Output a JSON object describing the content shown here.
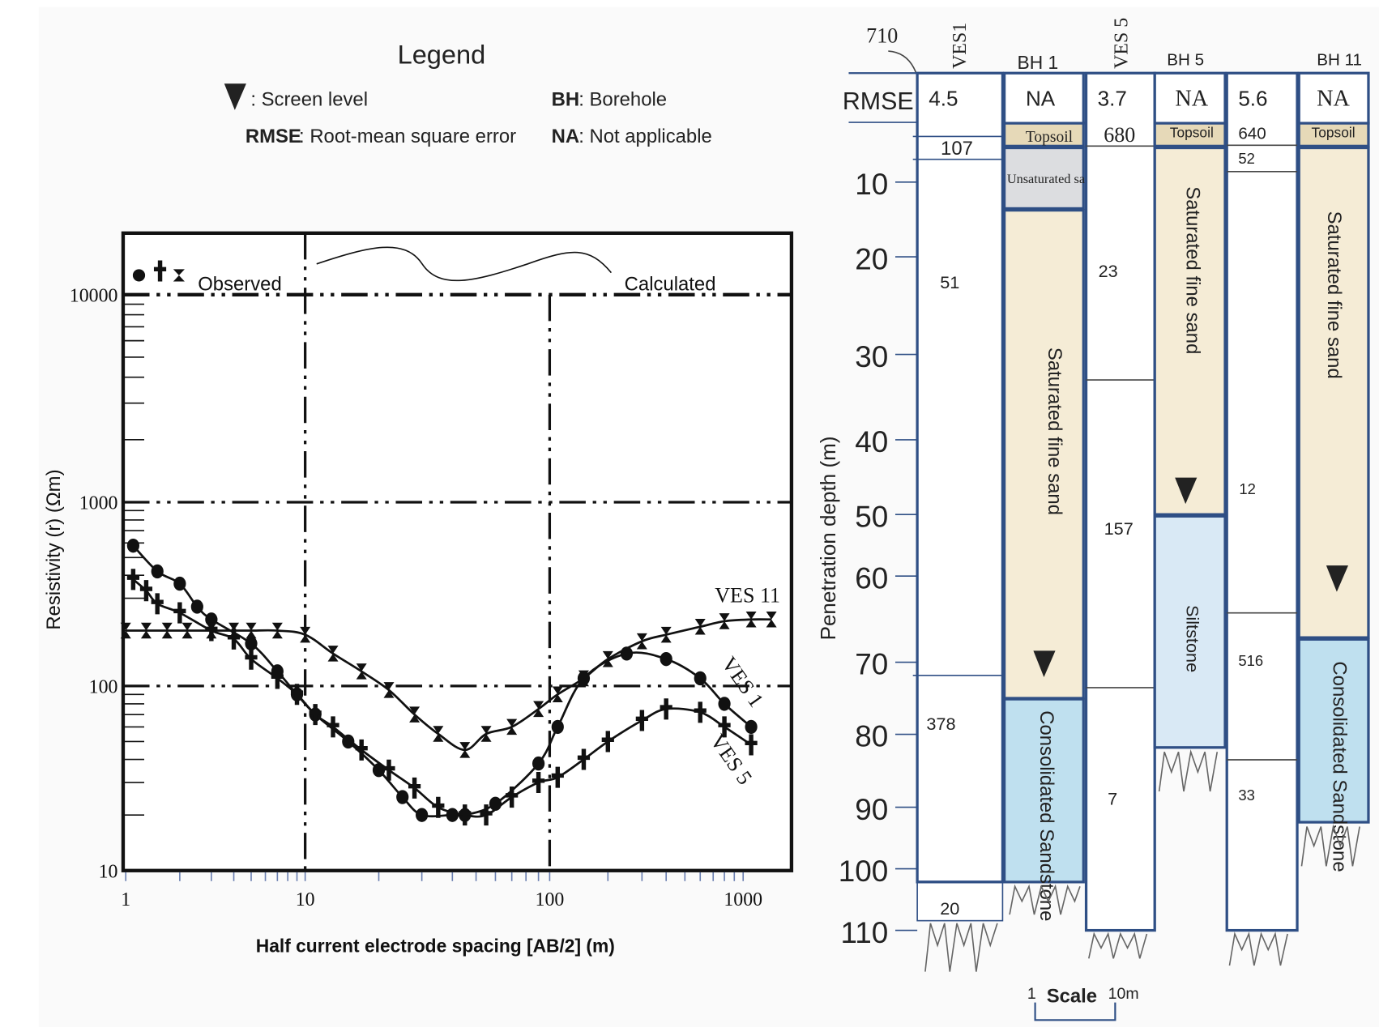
{
  "legend": {
    "title": "Legend",
    "screen_level": ": Screen level",
    "bh_key": "BH",
    "bh_text": ": Borehole",
    "rmse_key": "RMSE",
    "rmse_text": " : Root-mean  square error",
    "na_key": "NA",
    "na_text": ": Not applicable"
  },
  "chart_data": {
    "type": "line",
    "xlabel": "Half current electrode spacing [AB/2] (m)",
    "ylabel": "Resistivity (r) (Ωm)",
    "x_scale": "log",
    "y_scale": "log",
    "xlim": [
      1,
      1500
    ],
    "ylim": [
      10,
      20000
    ],
    "x_ticks": [
      "1",
      "10",
      "100",
      "1000"
    ],
    "y_ticks": [
      "10",
      "100",
      "1000",
      "10000"
    ],
    "grid": "dash-dot lines at x=10, x=100, y=100, y=1000, y=10000",
    "legend_observed": "Observed",
    "legend_calculated": "Calculated",
    "series": [
      {
        "name": "VES 1",
        "marker": "circle",
        "x": [
          1.1,
          1.5,
          2,
          2.5,
          3,
          5,
          7,
          9,
          11,
          15,
          20,
          25,
          30,
          40,
          45,
          60,
          90,
          110,
          150,
          250,
          400,
          600,
          800,
          1100
        ],
        "y": [
          580,
          420,
          360,
          270,
          230,
          170,
          120,
          90,
          70,
          50,
          35,
          25,
          20,
          20,
          20,
          23,
          38,
          60,
          110,
          150,
          140,
          110,
          80,
          60
        ]
      },
      {
        "name": "VES 5",
        "marker": "cross",
        "x": [
          1.1,
          1.3,
          1.5,
          2,
          3,
          4,
          5,
          7,
          9,
          11,
          13,
          17,
          22,
          28,
          35,
          45,
          55,
          70,
          90,
          110,
          150,
          200,
          300,
          400,
          600,
          800,
          1100
        ],
        "y": [
          380,
          330,
          280,
          250,
          200,
          180,
          140,
          110,
          90,
          70,
          60,
          45,
          35,
          28,
          22,
          20,
          20,
          25,
          30,
          32,
          40,
          50,
          65,
          75,
          72,
          60,
          48
        ]
      },
      {
        "name": "VES 11",
        "marker": "hourglass",
        "x": [
          1,
          1.3,
          1.7,
          2.2,
          3,
          4,
          5,
          7,
          10,
          13,
          17,
          22,
          28,
          35,
          45,
          55,
          70,
          90,
          110,
          150,
          200,
          300,
          400,
          600,
          800,
          1100,
          1400
        ],
        "y": [
          200,
          200,
          200,
          200,
          200,
          200,
          200,
          200,
          190,
          150,
          120,
          95,
          70,
          55,
          45,
          55,
          60,
          75,
          90,
          110,
          140,
          175,
          190,
          210,
          225,
          230,
          230
        ]
      }
    ]
  },
  "logs": {
    "depth_label": "Penetration depth (m)",
    "depth_ticks": [
      "10",
      "20",
      "30",
      "40",
      "50",
      "60",
      "70",
      "80",
      "90",
      "100",
      "110"
    ],
    "rmse_label": "RMSE",
    "annotation_710": "710",
    "scale_label": "Scale",
    "scale_left": "1",
    "scale_right": "10m",
    "columns": [
      {
        "header": "VES1",
        "rmse": "4.5",
        "values": [
          "107",
          "51",
          "378",
          "20"
        ]
      },
      {
        "header": "BH 1",
        "rmse": "NA",
        "layers": [
          "Topsoil",
          "Unsaturated sand",
          "Saturated  fine  sand",
          "Consolidated Sandstone"
        ]
      },
      {
        "header": "VES 5",
        "rmse": "3.7",
        "values": [
          "680",
          "23",
          "157",
          "7"
        ]
      },
      {
        "header": "BH 5",
        "rmse": "NA",
        "layers": [
          "Topsoil",
          "Saturated  fine  sand",
          "Siltstone"
        ]
      },
      {
        "header": "",
        "rmse": "5.6",
        "values": [
          "640",
          "52",
          "12",
          "516",
          "33"
        ]
      },
      {
        "header": "BH 11",
        "rmse": "NA",
        "layers": [
          "Topsoil",
          "Saturated fine  sand",
          "Consolidated Sandstone"
        ]
      }
    ]
  },
  "colors": {
    "topsoil": "#e6d9b8",
    "sand": "#f5ecd6",
    "unsaturated": "#dcdde0",
    "sandstone": "#bfe0ef",
    "siltstone": "#d9e9f5",
    "border": "#2f4f85"
  }
}
